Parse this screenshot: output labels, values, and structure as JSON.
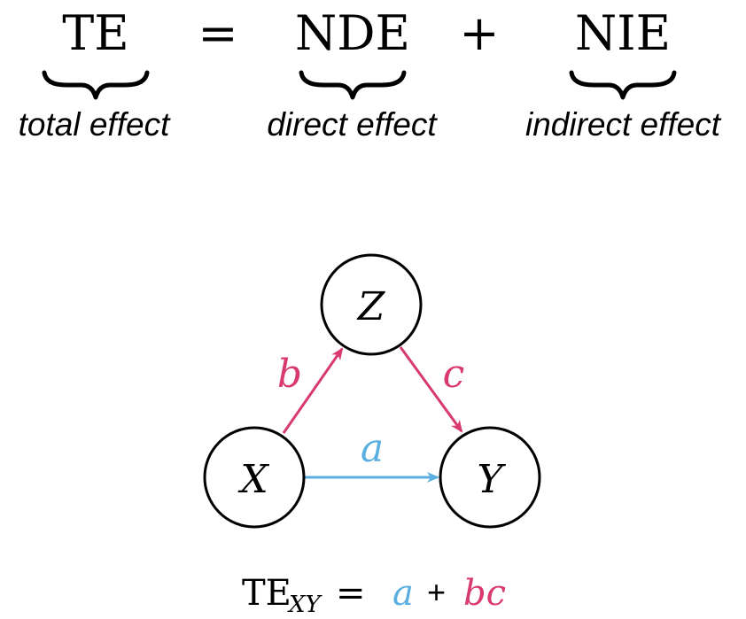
{
  "equation": {
    "te": "TE",
    "equals": "=",
    "nde": "NDE",
    "plus": "+",
    "nie": "NIE",
    "te_label": "total effect",
    "nde_label": "direct effect",
    "nie_label": "indirect effect"
  },
  "diagram": {
    "nodes": {
      "x": "X",
      "y": "Y",
      "z": "Z"
    },
    "edges": {
      "a": "a",
      "b": "b",
      "c": "c"
    }
  },
  "formula": {
    "te": "TE",
    "subscript": "XY",
    "equals": "=",
    "a": "a",
    "plus": "+",
    "bc": "bc"
  },
  "colors": {
    "direct": "#5aaee0",
    "indirect": "#d93a6e",
    "ink": "#000000"
  }
}
